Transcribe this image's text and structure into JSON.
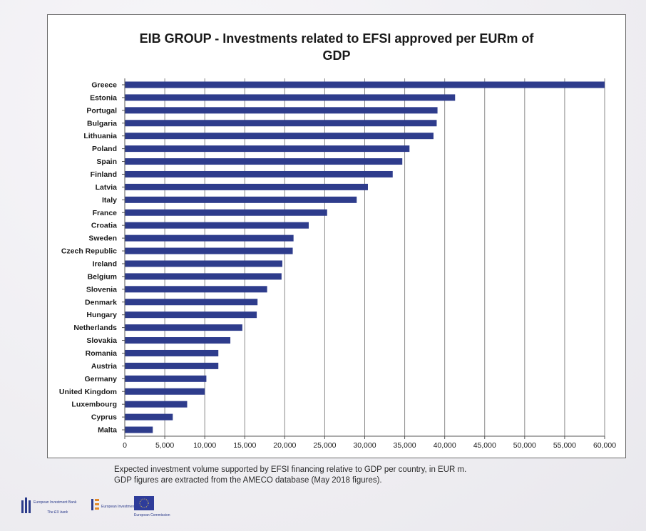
{
  "chart_data": {
    "type": "bar",
    "orientation": "horizontal",
    "title_line1": "EIB GROUP - Investments related to EFSI approved per EURm of",
    "title_line2": "GDP",
    "categories": [
      "Greece",
      "Estonia",
      "Portugal",
      "Bulgaria",
      "Lithuania",
      "Poland",
      "Spain",
      "Finland",
      "Latvia",
      "Italy",
      "France",
      "Croatia",
      "Sweden",
      "Czech Republic",
      "Ireland",
      "Belgium",
      "Slovenia",
      "Denmark",
      "Hungary",
      "Netherlands",
      "Slovakia",
      "Romania",
      "Austria",
      "Germany",
      "United Kingdom",
      "Luxembourg",
      "Cyprus",
      "Malta"
    ],
    "values": [
      60000,
      41300,
      39100,
      39000,
      38600,
      35600,
      34700,
      33500,
      30400,
      29000,
      25300,
      23000,
      21100,
      21000,
      19700,
      19600,
      17800,
      16600,
      16500,
      14700,
      13200,
      11700,
      11700,
      10200,
      10000,
      7800,
      6000,
      3500
    ],
    "xlim": [
      0,
      60000
    ],
    "xticks": [
      0,
      5000,
      10000,
      15000,
      20000,
      25000,
      30000,
      35000,
      40000,
      45000,
      50000,
      55000,
      60000
    ],
    "xtick_labels": [
      "0",
      "5,000",
      "10,000",
      "15,000",
      "20,000",
      "25,000",
      "30,000",
      "35,000",
      "40,000",
      "45,000",
      "50,000",
      "55,000",
      "60,000"
    ],
    "grid": true,
    "bar_color": "#2e3c8c"
  },
  "caption": {
    "line1": "Expected investment volume supported by EFSI financing relative to GDP per country, in EUR m.",
    "line2": "GDP figures are extracted from the AMECO database (May 2018 figures)."
  },
  "logos": {
    "eib_name": "European Investment Bank",
    "eib_tagline": "The EU bank",
    "eif_name": "European Investment Fund",
    "ec_name": "European Commission"
  }
}
